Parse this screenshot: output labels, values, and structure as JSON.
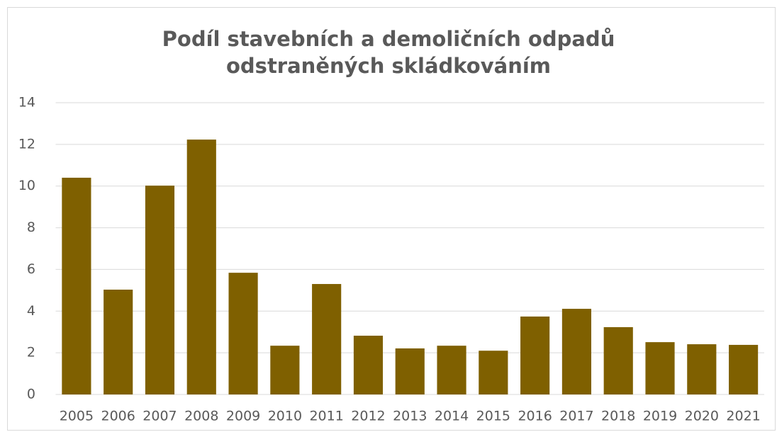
{
  "chart_data": {
    "type": "bar",
    "title": "Podíl stavebních a demoličních odpadů odstraněných skládkováním",
    "categories": [
      "2005",
      "2006",
      "2007",
      "2008",
      "2009",
      "2010",
      "2011",
      "2012",
      "2013",
      "2014",
      "2015",
      "2016",
      "2017",
      "2018",
      "2019",
      "2020",
      "2021"
    ],
    "values": [
      10.4,
      5.03,
      10.02,
      12.23,
      5.84,
      2.34,
      5.3,
      2.82,
      2.21,
      2.34,
      2.1,
      3.74,
      4.11,
      3.23,
      2.51,
      2.41,
      2.38
    ],
    "color": "#7f6000",
    "ylim": [
      0,
      14
    ],
    "yticks": [
      0,
      2,
      4,
      6,
      8,
      10,
      12,
      14
    ],
    "grid": true
  }
}
